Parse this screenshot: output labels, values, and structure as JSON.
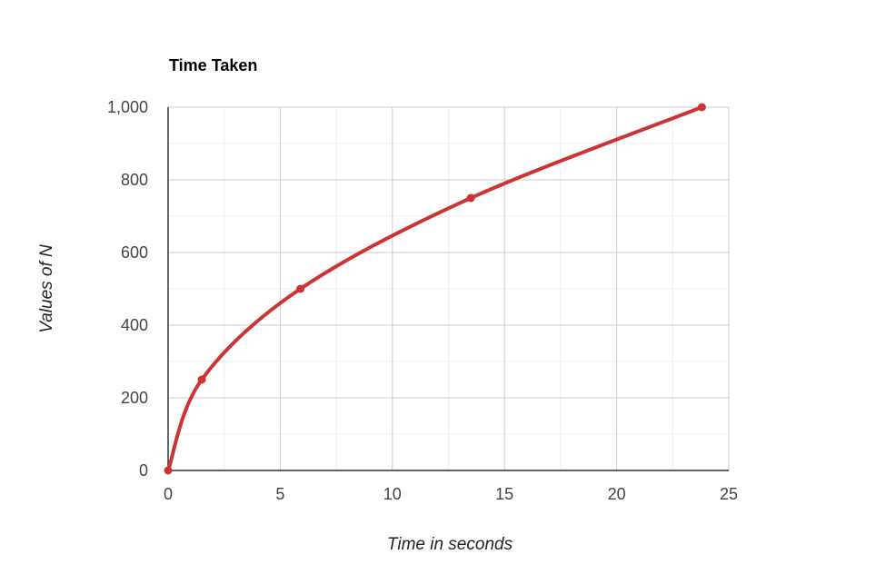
{
  "chart_data": {
    "type": "line",
    "title": "Time Taken",
    "xlabel": "Time in seconds",
    "ylabel": "Values of N",
    "xlim": [
      0,
      25
    ],
    "ylim": [
      0,
      1000
    ],
    "x_ticks": [
      0,
      5,
      10,
      15,
      20,
      25
    ],
    "x_tick_labels": [
      "0",
      "5",
      "10",
      "15",
      "20",
      "25"
    ],
    "y_ticks": [
      0,
      200,
      400,
      600,
      800,
      1000
    ],
    "y_tick_labels": [
      "0",
      "200",
      "400",
      "600",
      "800",
      "1,000"
    ],
    "grid": true,
    "series": [
      {
        "color": "#cc3333",
        "points": [
          {
            "x": 0,
            "y": 0
          },
          {
            "x": 1.5,
            "y": 250
          },
          {
            "x": 5.9,
            "y": 500
          },
          {
            "x": 13.5,
            "y": 750
          },
          {
            "x": 23.8,
            "y": 1000
          }
        ]
      }
    ]
  }
}
